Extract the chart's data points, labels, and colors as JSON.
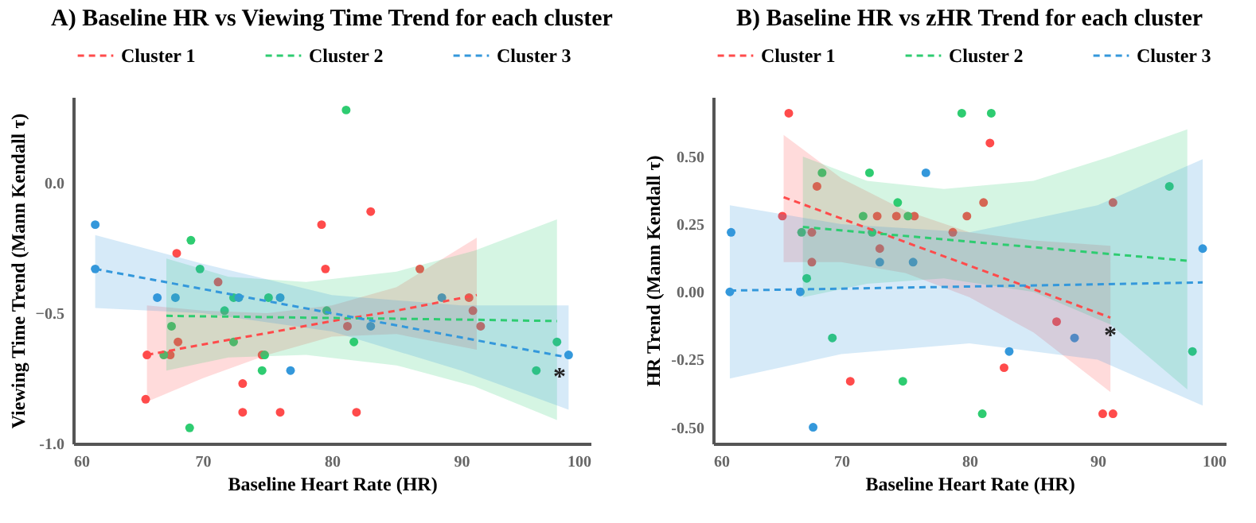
{
  "chart_data": [
    {
      "type": "scatter",
      "title": "A) Baseline HR vs Viewing Time Trend for each cluster",
      "xlabel": "Baseline Heart Rate (HR)",
      "ylabel": "Viewing Time Trend (Mann Kendall τ)",
      "xlim": [
        60,
        100
      ],
      "xticks": [
        60,
        70,
        80,
        90,
        100
      ],
      "ylim": [
        -1.0,
        0.33
      ],
      "yticks": [
        {
          "value": -1.0,
          "label": "-1.0"
        },
        -0.5,
        {
          "value": 0,
          "label": "0.0"
        }
      ],
      "legend": "top",
      "annotations": [
        {
          "text": "*",
          "x": 97.6,
          "y": -0.72
        }
      ],
      "series": [
        {
          "color": "#ff4b4b",
          "marker": "circle",
          "x": [
            65.7,
            65.6,
            68.0,
            67.5,
            68.1,
            71.2,
            73.1,
            73.1,
            74.6,
            76.0,
            79.2,
            79.5,
            81.2,
            81.9,
            83.0,
            86.8,
            90.6,
            90.9,
            91.5
          ],
          "values": [
            -0.66,
            -0.83,
            -0.27,
            -0.66,
            -0.61,
            -0.38,
            -0.77,
            -0.88,
            -0.66,
            -0.88,
            -0.16,
            -0.33,
            -0.55,
            -0.88,
            -0.11,
            -0.33,
            -0.44,
            -0.49,
            -0.55
          ]
        },
        {
          "color": "#2ecc71",
          "marker": "circle",
          "x": [
            81.1,
            69.1,
            69.8,
            67.6,
            67.0,
            71.7,
            72.4,
            72.4,
            75.1,
            74.6,
            74.8,
            79.6,
            81.7,
            69.0,
            95.8,
            97.4
          ],
          "values": [
            0.28,
            -0.22,
            -0.33,
            -0.55,
            -0.66,
            -0.49,
            -0.44,
            -0.61,
            -0.44,
            -0.72,
            -0.66,
            -0.49,
            -0.61,
            -0.94,
            -0.72,
            -0.61
          ]
        },
        {
          "color": "#3498db",
          "marker": "circle",
          "x": [
            61.7,
            61.7,
            66.5,
            67.9,
            72.8,
            76.0,
            76.8,
            83.0,
            88.5,
            98.3
          ],
          "values": [
            -0.16,
            -0.33,
            -0.44,
            -0.44,
            -0.44,
            -0.44,
            -0.72,
            -0.55,
            -0.44,
            -0.66
          ]
        },
        {
          "name": "Cluster 1",
          "type": "line",
          "marker": "none",
          "line_style": "dashed",
          "color": "#ff4b4b",
          "x": [
            65.7,
            70,
            75,
            80,
            85,
            91.2
          ],
          "values": [
            -0.66,
            -0.62,
            -0.576,
            -0.53,
            -0.49,
            -0.43
          ],
          "lower": [
            -0.84,
            -0.75,
            -0.66,
            -0.59,
            -0.58,
            -0.64
          ],
          "upper": [
            -0.47,
            -0.49,
            -0.5,
            -0.47,
            -0.4,
            -0.21
          ]
        },
        {
          "name": "Cluster 2",
          "type": "line",
          "marker": "none",
          "line_style": "dashed",
          "color": "#2ecc71",
          "x": [
            67.2,
            72,
            78,
            85,
            91,
            97.4
          ],
          "values": [
            -0.51,
            -0.513,
            -0.517,
            -0.521,
            -0.525,
            -0.53
          ],
          "lower": [
            -0.72,
            -0.67,
            -0.66,
            -0.7,
            -0.78,
            -0.91
          ],
          "upper": [
            -0.29,
            -0.36,
            -0.38,
            -0.34,
            -0.26,
            -0.14
          ]
        },
        {
          "name": "Cluster 3",
          "type": "line",
          "marker": "none",
          "line_style": "dashed",
          "color": "#3498db",
          "x": [
            61.7,
            70,
            80,
            90,
            98.3
          ],
          "values": [
            -0.33,
            -0.407,
            -0.5,
            -0.593,
            -0.67
          ],
          "lower": [
            -0.48,
            -0.5,
            -0.57,
            -0.72,
            -0.87
          ],
          "upper": [
            -0.2,
            -0.31,
            -0.43,
            -0.47,
            -0.47
          ]
        }
      ]
    },
    {
      "type": "scatter",
      "title": "B) Baseline HR vs zHR Trend for each cluster",
      "xlabel": "Baseline Heart Rate (HR)",
      "ylabel": "HR Trend (Mann Kendall τ)",
      "xlim": [
        60,
        100
      ],
      "xticks": [
        60,
        70,
        80,
        90,
        100
      ],
      "ylim": [
        -0.56,
        0.72
      ],
      "yticks": [
        {
          "value": -0.5,
          "label": "-0.50"
        },
        {
          "value": -0.25,
          "label": "-0.25"
        },
        {
          "value": 0,
          "label": "0.00"
        },
        {
          "value": 0.25,
          "label": "0.25"
        },
        {
          "value": 0.5,
          "label": "0.50"
        }
      ],
      "legend": "top",
      "annotations": [
        {
          "text": "*",
          "x": 91.0,
          "y": -0.137
        }
      ],
      "series": [
        {
          "color": "#ff4b4b",
          "marker": "circle",
          "x": [
            65.9,
            65.4,
            81.6,
            68.1,
            67.7,
            67.7,
            72.8,
            73.0,
            74.3,
            75.7,
            78.7,
            79.8,
            81.1,
            86.8,
            91.2,
            70.7,
            82.7,
            90.4,
            91.2
          ],
          "values": [
            0.66,
            0.28,
            0.55,
            0.39,
            0.22,
            0.11,
            0.28,
            0.16,
            0.28,
            0.28,
            0.22,
            0.28,
            0.33,
            -0.11,
            0.33,
            -0.33,
            -0.28,
            -0.45,
            -0.45
          ]
        },
        {
          "color": "#2ecc71",
          "marker": "circle",
          "x": [
            79.4,
            81.7,
            68.5,
            72.2,
            74.4,
            71.7,
            75.2,
            66.9,
            72.4,
            67.3,
            69.3,
            74.8,
            81.0,
            95.6,
            97.4
          ],
          "values": [
            0.66,
            0.66,
            0.44,
            0.44,
            0.33,
            0.28,
            0.28,
            0.22,
            0.22,
            0.05,
            -0.17,
            -0.33,
            -0.45,
            0.39,
            -0.22
          ]
        },
        {
          "color": "#3498db",
          "marker": "circle",
          "x": [
            61.4,
            61.3,
            66.8,
            67.8,
            76.6,
            73.0,
            75.6,
            83.1,
            88.2,
            98.2
          ],
          "values": [
            0.22,
            0.0,
            0.0,
            -0.5,
            0.44,
            0.11,
            0.11,
            -0.22,
            -0.17,
            0.16
          ]
        },
        {
          "name": "Cluster 1",
          "type": "line",
          "marker": "none",
          "line_style": "dashed",
          "color": "#ff4b4b",
          "x": [
            65.5,
            70,
            75,
            80,
            85,
            91.0
          ],
          "values": [
            0.35,
            0.271,
            0.184,
            0.097,
            0.01,
            -0.095
          ],
          "lower": [
            0.11,
            0.11,
            0.07,
            -0.02,
            -0.15,
            -0.37
          ],
          "upper": [
            0.58,
            0.42,
            0.3,
            0.22,
            0.19,
            0.17
          ]
        },
        {
          "name": "Cluster 2",
          "type": "line",
          "marker": "none",
          "line_style": "dashed",
          "color": "#2ecc71",
          "x": [
            67.0,
            72,
            78,
            85,
            91,
            97.0
          ],
          "values": [
            0.24,
            0.219,
            0.194,
            0.165,
            0.14,
            0.115
          ],
          "lower": [
            -0.02,
            0.03,
            0.05,
            0.0,
            -0.12,
            -0.36
          ],
          "upper": [
            0.5,
            0.41,
            0.38,
            0.41,
            0.5,
            0.6
          ]
        },
        {
          "name": "Cluster 3",
          "type": "line",
          "marker": "none",
          "line_style": "dashed",
          "color": "#3498db",
          "x": [
            61.3,
            70,
            80,
            90,
            98.2
          ],
          "values": [
            0.005,
            0.012,
            0.02,
            0.028,
            0.035
          ],
          "lower": [
            -0.32,
            -0.23,
            -0.19,
            -0.25,
            -0.42
          ],
          "upper": [
            0.32,
            0.25,
            0.22,
            0.32,
            0.49
          ]
        }
      ]
    }
  ]
}
